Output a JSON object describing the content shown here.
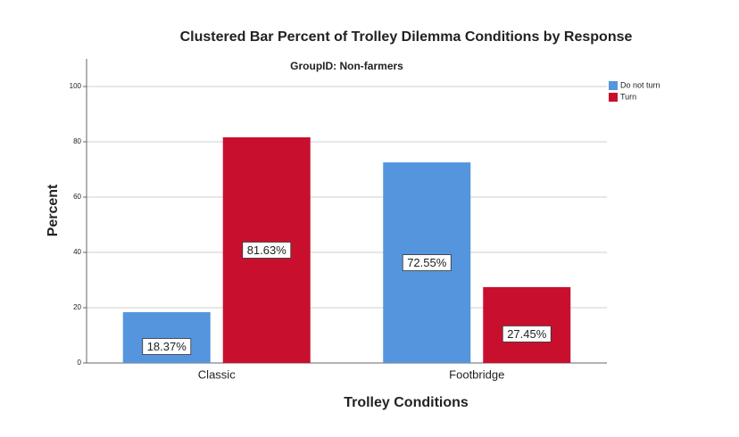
{
  "chart_data": {
    "type": "bar",
    "title": "Clustered Bar Percent of Trolley Dilemma Conditions by Response",
    "subtitle": "GroupID: Non-farmers",
    "x_label": "Trolley Conditions",
    "y_label": "Percent",
    "categories": [
      "Classic",
      "Footbridge"
    ],
    "series": [
      {
        "name": "Do not turn",
        "color": "#5595dd",
        "values": [
          18.37,
          72.55
        ],
        "value_labels": [
          "18.37%",
          "72.55%"
        ]
      },
      {
        "name": "Turn",
        "color": "#c8102e",
        "values": [
          81.63,
          27.45
        ],
        "value_labels": [
          "81.63%",
          "27.45%"
        ]
      }
    ],
    "ylim": [
      0,
      110
    ],
    "yticks": [
      0,
      20,
      40,
      60,
      80,
      100
    ],
    "grid": true,
    "legend": "top-right"
  }
}
